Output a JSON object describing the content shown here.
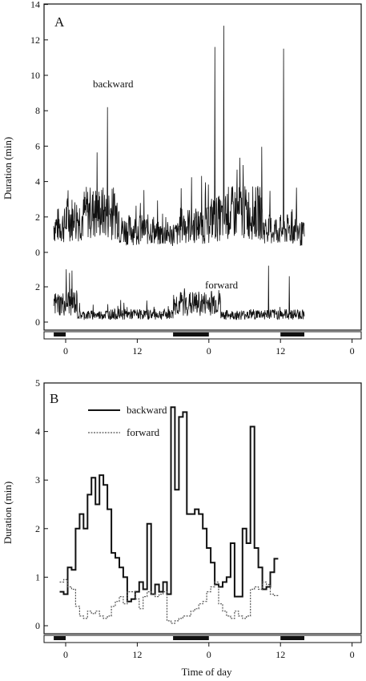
{
  "chart_data": [
    {
      "type": "line",
      "panel_label": "A",
      "ylabel": "Duration (min)",
      "x_ticks": [
        "0",
        "12",
        "0",
        "12",
        "0"
      ],
      "y_ticks_upper": [
        "0",
        "2",
        "4",
        "6",
        "8",
        "10",
        "12",
        "14"
      ],
      "y_ticks_lower": [
        "0",
        "2"
      ],
      "series": [
        {
          "name": "backward",
          "x_range_h": [
            -2,
            40
          ],
          "typical_range_min": [
            0,
            4.5
          ],
          "peaks": [
            {
              "x": 7,
              "y": 8.2
            },
            {
              "x": 25,
              "y": 11.6
            },
            {
              "x": 26.5,
              "y": 12.8
            },
            {
              "x": 36.5,
              "y": 11.5
            }
          ]
        },
        {
          "name": "forward",
          "x_range_h": [
            -2,
            40
          ],
          "typical_range_min": [
            0,
            2.5
          ],
          "peaks": [
            {
              "x": 34,
              "y": 3.2
            },
            {
              "x": 37.5,
              "y": 2.6
            }
          ]
        }
      ],
      "light_dark_bar": [
        {
          "from": -2,
          "to": 0,
          "phase": "dark"
        },
        {
          "from": 0,
          "to": 18,
          "phase": "light"
        },
        {
          "from": 18,
          "to": 24,
          "phase": "dark"
        },
        {
          "from": 24,
          "to": 36,
          "phase": "light"
        },
        {
          "from": 36,
          "to": 40,
          "phase": "dark"
        }
      ]
    },
    {
      "type": "line",
      "panel_label": "B",
      "xlabel": "Time of day",
      "ylabel": "Duration (min)",
      "x_ticks": [
        "0",
        "12",
        "0",
        "12",
        "0"
      ],
      "y_ticks": [
        "0",
        "1",
        "2",
        "3",
        "4",
        "5"
      ],
      "ylim": [
        0,
        5
      ],
      "step_hours": 0.666,
      "x_start_h": -1,
      "series": [
        {
          "name": "backward",
          "values": [
            0.7,
            0.65,
            1.2,
            1.15,
            2.0,
            2.3,
            2.0,
            2.7,
            3.05,
            2.5,
            3.1,
            2.9,
            2.4,
            1.5,
            1.4,
            1.2,
            1.0,
            0.5,
            0.55,
            0.7,
            0.9,
            0.75,
            2.1,
            0.65,
            0.85,
            0.7,
            0.9,
            0.65,
            4.5,
            2.8,
            4.3,
            4.4,
            2.3,
            2.3,
            2.4,
            2.3,
            2.0,
            1.6,
            1.3,
            0.85,
            0.8,
            0.9,
            1.0,
            1.7,
            0.6,
            0.6,
            2.0,
            1.7,
            4.1,
            1.6,
            1.2,
            0.75,
            0.8,
            1.1,
            1.38
          ]
        },
        {
          "name": "forward",
          "values": [
            0.9,
            0.95,
            0.8,
            0.75,
            0.4,
            0.2,
            0.15,
            0.3,
            0.25,
            0.3,
            0.2,
            0.15,
            0.2,
            0.4,
            0.5,
            0.6,
            0.45,
            0.7,
            0.7,
            0.55,
            0.35,
            0.6,
            0.7,
            0.65,
            0.6,
            0.65,
            0.7,
            0.1,
            0.05,
            0.1,
            0.15,
            0.2,
            0.2,
            0.3,
            0.35,
            0.45,
            0.5,
            0.7,
            0.8,
            0.9,
            0.45,
            0.3,
            0.2,
            0.15,
            0.3,
            0.2,
            0.15,
            0.2,
            0.75,
            0.8,
            0.75,
            0.9,
            0.85,
            0.65,
            0.62
          ]
        }
      ],
      "light_dark_bar": [
        {
          "from": -2,
          "to": 0,
          "phase": "dark"
        },
        {
          "from": 0,
          "to": 18,
          "phase": "light"
        },
        {
          "from": 18,
          "to": 24,
          "phase": "dark"
        },
        {
          "from": 24,
          "to": 36,
          "phase": "light"
        },
        {
          "from": 36,
          "to": 40,
          "phase": "dark"
        }
      ]
    }
  ]
}
